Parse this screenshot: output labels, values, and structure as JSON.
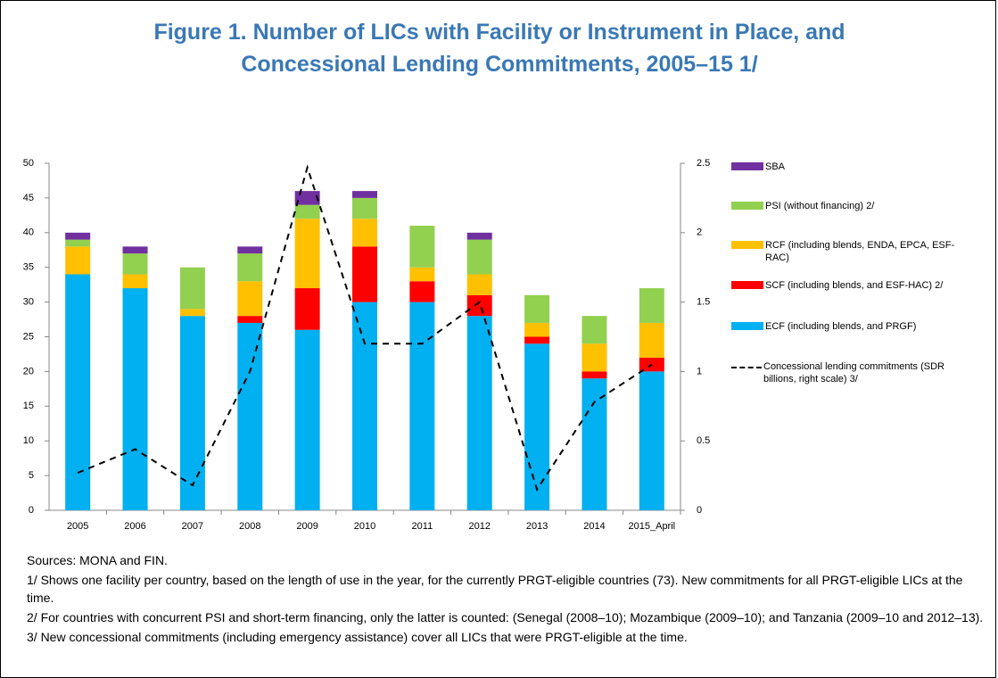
{
  "chart_data": {
    "type": "bar",
    "stacked": true,
    "title": "Figure 1. Number of LICs with Facility or Instrument in Place, and Concessional Lending Commitments, 2005–15 1/",
    "categories": [
      "2005",
      "2006",
      "2007",
      "2008",
      "2009",
      "2010",
      "2011",
      "2012",
      "2013",
      "2014",
      "2015_April"
    ],
    "series": [
      {
        "name": "ECF (including blends, and PRGF)",
        "color": "#00b0f0",
        "values": [
          34,
          32,
          28,
          27,
          26,
          30,
          30,
          28,
          24,
          19,
          20
        ]
      },
      {
        "name": "SCF (including blends, and ESF-HAC) 2/",
        "color": "#ff0000",
        "values": [
          0,
          0,
          0,
          1,
          6,
          8,
          3,
          3,
          1,
          1,
          2
        ]
      },
      {
        "name": "RCF (including blends, ENDA, EPCA, ESF-RAC)",
        "color": "#ffc000",
        "values": [
          4,
          2,
          1,
          5,
          10,
          4,
          2,
          3,
          2,
          4,
          5
        ]
      },
      {
        "name": "PSI (without financing) 2/",
        "color": "#92d050",
        "values": [
          1,
          3,
          6,
          4,
          2,
          3,
          6,
          5,
          4,
          4,
          5
        ]
      },
      {
        "name": "SBA",
        "color": "#7030a0",
        "values": [
          1,
          1,
          0,
          1,
          2,
          1,
          0,
          1,
          0,
          0,
          0
        ]
      },
      {
        "name": "Concessional lending commitments (SDR billions, right scale) 3/",
        "color": "#000000",
        "type": "line",
        "axis": "y2",
        "values": [
          0.27,
          0.44,
          0.18,
          1.0,
          2.47,
          1.2,
          1.2,
          1.5,
          0.15,
          0.78,
          1.05
        ]
      }
    ],
    "ylim": [
      0,
      50
    ],
    "yticks": [
      0,
      5,
      10,
      15,
      20,
      25,
      30,
      35,
      40,
      45,
      50
    ],
    "y2lim": [
      0,
      2.5
    ],
    "y2ticks": [
      0,
      0.5,
      1,
      1.5,
      2,
      2.5
    ],
    "grid": false
  },
  "notes": [
    "Sources: MONA and FIN.",
    "1/ Shows one facility per country, based on the length of use in the year, for the currently PRGT-eligible countries (73). New commitments for all PRGT-eligible LICs at the time.",
    "2/ For countries with concurrent PSI and short-term financing, only the latter is counted: (Senegal (2008–10); Mozambique (2009–10); and Tanzania (2009–10 and 2012–13).",
    "3/ New concessional commitments (including emergency assistance) cover all LICs that were PRGT-eligible at the time."
  ]
}
